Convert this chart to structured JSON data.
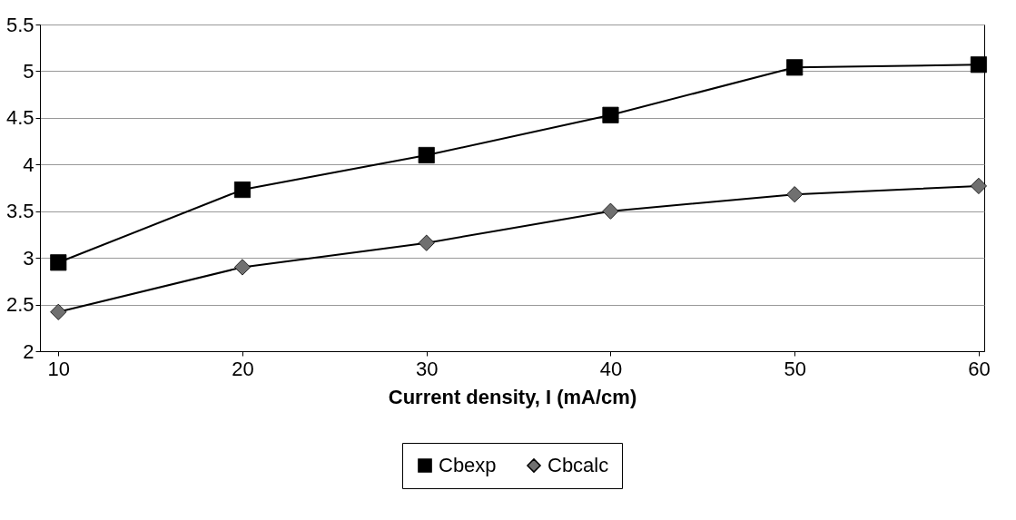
{
  "chart_data": {
    "type": "line",
    "xlabel": "Current density, I (mA/cm)",
    "x": [
      10,
      20,
      30,
      40,
      50,
      60
    ],
    "xlim": [
      9,
      60.3
    ],
    "xticks": [
      10,
      20,
      30,
      40,
      50,
      60
    ],
    "ylim": [
      2,
      5.5
    ],
    "yticks": [
      2,
      2.5,
      3,
      3.5,
      4,
      4.5,
      5,
      5.5
    ],
    "grid": "y",
    "legend": "bottom",
    "series": [
      {
        "name": "Cbexp",
        "color": "#000000",
        "marker": "square",
        "values": [
          2.95,
          3.73,
          4.1,
          4.53,
          5.04,
          5.07
        ]
      },
      {
        "name": "Cbcalc",
        "color": "#707070",
        "marker": "diamond",
        "values": [
          2.42,
          2.9,
          3.16,
          3.5,
          3.68,
          3.77
        ]
      }
    ]
  }
}
